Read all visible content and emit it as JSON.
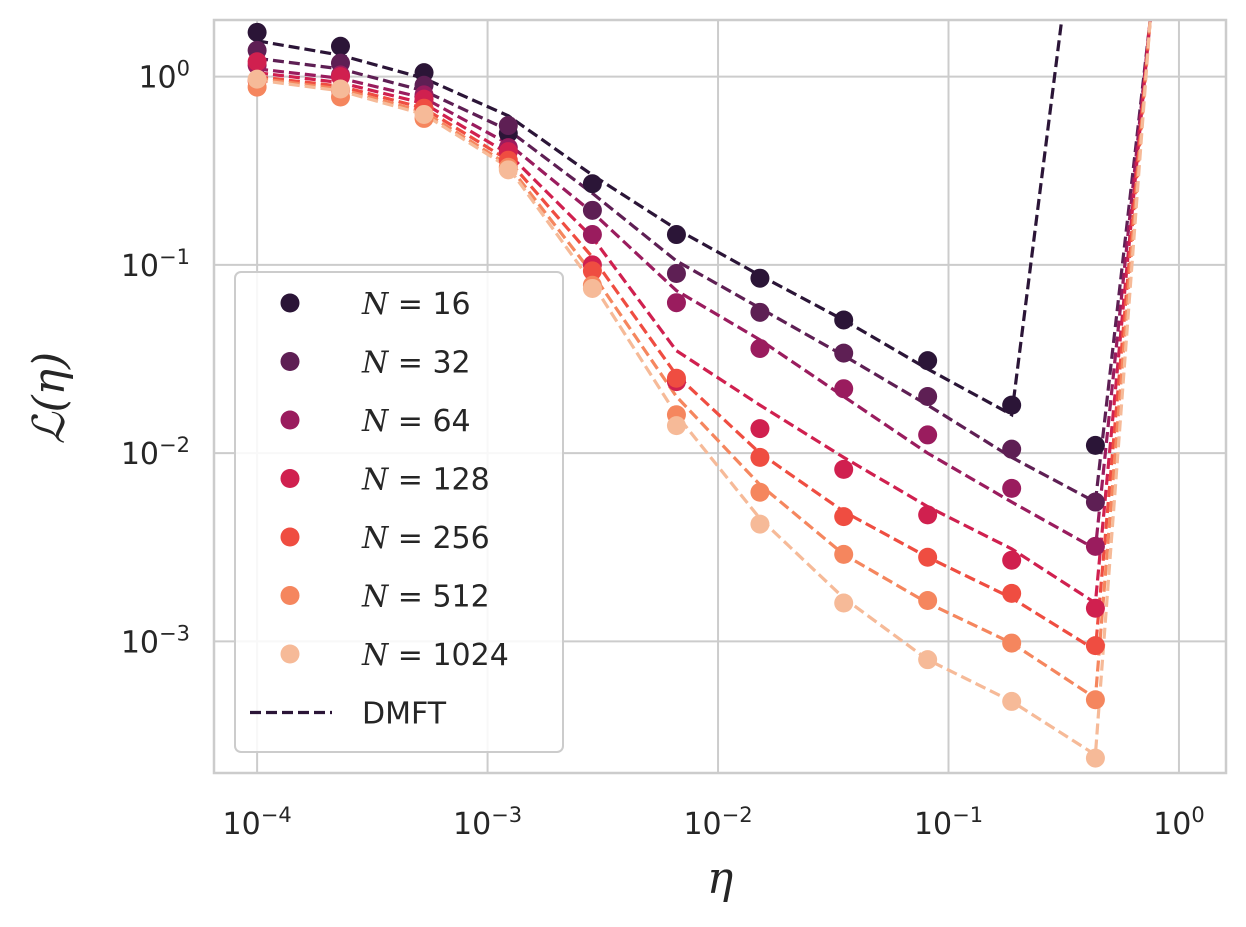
{
  "chart_data": {
    "type": "line",
    "xlabel": "η",
    "ylabel": "ℒ(η)",
    "xscale": "log",
    "yscale": "log",
    "xlim": [
      6.5e-05,
      1.6
    ],
    "ylim": [
      0.0002,
      2.0
    ],
    "x_ticks": [
      {
        "base": "10",
        "exp": "−4",
        "value": 0.0001
      },
      {
        "base": "10",
        "exp": "−3",
        "value": 0.001
      },
      {
        "base": "10",
        "exp": "−2",
        "value": 0.01
      },
      {
        "base": "10",
        "exp": "−1",
        "value": 0.1
      },
      {
        "base": "10",
        "exp": "0",
        "value": 1
      }
    ],
    "y_ticks": [
      {
        "base": "10",
        "exp": "0",
        "value": 1
      },
      {
        "base": "10",
        "exp": "−1",
        "value": 0.1
      },
      {
        "base": "10",
        "exp": "−2",
        "value": 0.01
      },
      {
        "base": "10",
        "exp": "−3",
        "value": 0.001
      }
    ],
    "grid": true,
    "legend_position": "lower-left",
    "dmft_label": "DMFT",
    "x": [
      0.0001,
      0.00023,
      0.00053,
      0.00123,
      0.00285,
      0.0066,
      0.0152,
      0.0351,
      0.0812,
      0.188,
      0.434,
      0.75
    ],
    "series": [
      {
        "name": "N = 16",
        "n_label": "16",
        "color": "#2b1537",
        "points": [
          1.72,
          1.45,
          1.05,
          0.5,
          0.27,
          0.145,
          0.085,
          0.051,
          0.031,
          0.018,
          0.011
        ],
        "dmft": [
          1.55,
          1.3,
          0.98,
          0.62,
          0.3,
          0.155,
          0.088,
          0.051,
          0.028,
          0.016,
          null,
          null
        ],
        "dmft_extra": [
          [
            0.188,
            0.016
          ],
          [
            0.31,
            2.0
          ]
        ]
      },
      {
        "name": "N = 32",
        "n_label": "32",
        "color": "#5e1f54",
        "points": [
          1.38,
          1.18,
          0.9,
          0.55,
          0.195,
          0.09,
          0.056,
          0.034,
          0.02,
          0.0105,
          0.0055
        ],
        "dmft": [
          1.25,
          1.1,
          0.84,
          0.52,
          0.24,
          0.105,
          0.059,
          0.033,
          0.018,
          0.0095,
          0.0055,
          2.0
        ]
      },
      {
        "name": "N = 64",
        "n_label": "64",
        "color": "#9a1c5e",
        "points": [
          1.15,
          1.02,
          0.8,
          0.42,
          0.145,
          0.063,
          0.036,
          0.022,
          0.0125,
          0.0065,
          0.0032
        ],
        "dmft": [
          1.1,
          0.98,
          0.77,
          0.44,
          0.19,
          0.073,
          0.04,
          0.02,
          0.01,
          0.0055,
          0.0031,
          2.0
        ]
      },
      {
        "name": "N = 128",
        "n_label": "128",
        "color": "#d0204f",
        "points": [
          1.2,
          1.0,
          0.76,
          0.4,
          0.1,
          0.024,
          0.0135,
          0.0082,
          0.0047,
          0.0027,
          0.0015
        ],
        "dmft": [
          1.05,
          0.93,
          0.72,
          0.39,
          0.14,
          0.035,
          0.018,
          0.0095,
          0.0052,
          0.0031,
          0.0016,
          2.0
        ]
      },
      {
        "name": "N = 256",
        "n_label": "256",
        "color": "#ef4d41",
        "points": [
          0.95,
          0.85,
          0.68,
          0.36,
          0.093,
          0.025,
          0.0095,
          0.0046,
          0.0028,
          0.0018,
          0.00095
        ],
        "dmft": [
          1.0,
          0.89,
          0.68,
          0.36,
          0.11,
          0.026,
          0.01,
          0.0049,
          0.0028,
          0.0017,
          0.0009,
          2.0
        ]
      },
      {
        "name": "N = 512",
        "n_label": "512",
        "color": "#f5865e",
        "points": [
          0.88,
          0.78,
          0.6,
          0.33,
          0.078,
          0.016,
          0.0062,
          0.0029,
          0.00165,
          0.00098,
          0.00049
        ],
        "dmft": [
          0.98,
          0.86,
          0.65,
          0.34,
          0.09,
          0.02,
          0.0068,
          0.0029,
          0.0016,
          0.00098,
          0.0005,
          2.0
        ]
      },
      {
        "name": "N = 1024",
        "n_label": "1024",
        "color": "#f6ba98",
        "points": [
          0.97,
          0.86,
          0.63,
          0.32,
          0.075,
          0.014,
          0.0042,
          0.0016,
          0.0008,
          0.00048,
          0.00024
        ],
        "dmft": [
          0.96,
          0.84,
          0.63,
          0.33,
          0.08,
          0.016,
          0.0045,
          0.0017,
          0.0008,
          0.00048,
          0.00025,
          2.0
        ]
      }
    ]
  }
}
